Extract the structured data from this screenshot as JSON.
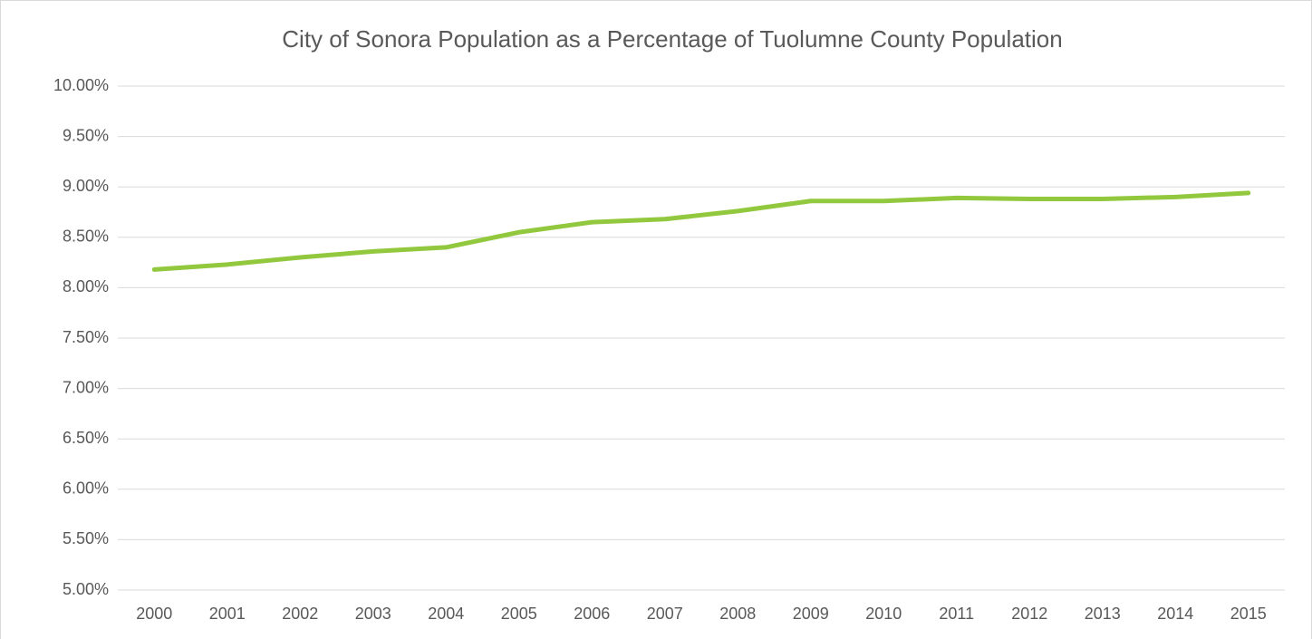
{
  "chart_data": {
    "type": "line",
    "title": "City of Sonora Population as a Percentage of Tuolumne County Population",
    "categories": [
      "2000",
      "2001",
      "2002",
      "2003",
      "2004",
      "2005",
      "2006",
      "2007",
      "2008",
      "2009",
      "2010",
      "2011",
      "2012",
      "2013",
      "2014",
      "2015"
    ],
    "series": [
      {
        "name": "City of Sonora Population as a Percentage of Tuolumne County Population",
        "color": "#92c83e",
        "values": [
          8.18,
          8.23,
          8.3,
          8.36,
          8.4,
          8.55,
          8.65,
          8.68,
          8.76,
          8.86,
          8.86,
          8.89,
          8.88,
          8.88,
          8.9,
          8.94
        ]
      }
    ],
    "ylim": [
      5,
      10
    ],
    "yticks": [
      {
        "value": 5,
        "label": "5.00%"
      },
      {
        "value": 5.5,
        "label": "5.50%"
      },
      {
        "value": 6,
        "label": "6.00%"
      },
      {
        "value": 6.5,
        "label": "6.50%"
      },
      {
        "value": 7,
        "label": "7.00%"
      },
      {
        "value": 7.5,
        "label": "7.50%"
      },
      {
        "value": 8,
        "label": "8.00%"
      },
      {
        "value": 8.5,
        "label": "8.50%"
      },
      {
        "value": 9,
        "label": "9.00%"
      },
      {
        "value": 9.5,
        "label": "9.50%"
      },
      {
        "value": 10,
        "label": "10.00%"
      }
    ],
    "grid": true,
    "legend": false
  }
}
